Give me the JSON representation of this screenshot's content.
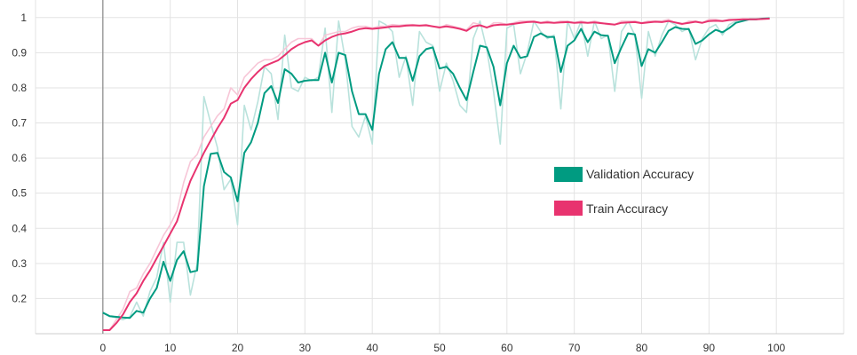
{
  "chart_data": {
    "type": "line",
    "title": "",
    "xlabel": "",
    "ylabel": "",
    "xlim": [
      -10,
      110
    ],
    "ylim": [
      0.1,
      1.05
    ],
    "xticks": [
      "0",
      "10",
      "20",
      "30",
      "40",
      "50",
      "60",
      "70",
      "80",
      "90",
      "100"
    ],
    "yticks": [
      "0.2",
      "0.3",
      "0.4",
      "0.5",
      "0.6",
      "0.7",
      "0.8",
      "0.9",
      "1"
    ],
    "grid": true,
    "legend_position": "center-right",
    "series": [
      {
        "name": "Validation Accuracy",
        "color": "#009b81",
        "raw_color": "#b9e2dc",
        "x": [
          0,
          1,
          2,
          3,
          4,
          5,
          6,
          7,
          8,
          9,
          10,
          11,
          12,
          13,
          14,
          15,
          16,
          17,
          18,
          19,
          20,
          21,
          22,
          23,
          24,
          25,
          26,
          27,
          28,
          29,
          30,
          31,
          32,
          33,
          34,
          35,
          36,
          37,
          38,
          39,
          40,
          41,
          42,
          43,
          44,
          45,
          46,
          47,
          48,
          49,
          50,
          51,
          52,
          53,
          54,
          55,
          56,
          57,
          58,
          59,
          60,
          61,
          62,
          63,
          64,
          65,
          66,
          67,
          68,
          69,
          70,
          71,
          72,
          73,
          74,
          75,
          76,
          77,
          78,
          79,
          80,
          81,
          82,
          83,
          84,
          85,
          86,
          87,
          88,
          89,
          90,
          91,
          92,
          93,
          94,
          95,
          96,
          97,
          98,
          99
        ],
        "values": [
          0.16,
          0.15,
          0.148,
          0.146,
          0.145,
          0.165,
          0.16,
          0.2,
          0.23,
          0.305,
          0.25,
          0.31,
          0.335,
          0.275,
          0.28,
          0.52,
          0.612,
          0.615,
          0.56,
          0.545,
          0.477,
          0.615,
          0.645,
          0.7,
          0.785,
          0.805,
          0.757,
          0.853,
          0.84,
          0.815,
          0.82,
          0.822,
          0.822,
          0.9,
          0.815,
          0.9,
          0.893,
          0.79,
          0.725,
          0.725,
          0.68,
          0.84,
          0.91,
          0.93,
          0.885,
          0.885,
          0.82,
          0.89,
          0.91,
          0.915,
          0.855,
          0.86,
          0.84,
          0.8,
          0.765,
          0.845,
          0.92,
          0.915,
          0.86,
          0.75,
          0.87,
          0.92,
          0.885,
          0.89,
          0.945,
          0.955,
          0.945,
          0.945,
          0.845,
          0.92,
          0.935,
          0.968,
          0.93,
          0.96,
          0.95,
          0.948,
          0.87,
          0.915,
          0.955,
          0.952,
          0.862,
          0.91,
          0.9,
          0.93,
          0.962,
          0.973,
          0.968,
          0.967,
          0.925,
          0.935,
          0.952,
          0.965,
          0.958,
          0.97,
          0.985,
          0.99,
          0.995,
          0.995,
          0.997,
          0.998
        ],
        "raw_values": [
          0.16,
          0.15,
          0.145,
          0.14,
          0.148,
          0.19,
          0.15,
          0.22,
          0.26,
          0.36,
          0.19,
          0.36,
          0.36,
          0.21,
          0.3,
          0.775,
          0.7,
          0.63,
          0.51,
          0.54,
          0.41,
          0.75,
          0.68,
          0.76,
          0.86,
          0.84,
          0.71,
          0.95,
          0.8,
          0.79,
          0.83,
          0.82,
          0.83,
          0.97,
          0.73,
          0.99,
          0.88,
          0.69,
          0.66,
          0.72,
          0.64,
          0.99,
          0.98,
          0.96,
          0.83,
          0.89,
          0.75,
          0.96,
          0.93,
          0.92,
          0.79,
          0.87,
          0.82,
          0.75,
          0.73,
          0.94,
          0.99,
          0.91,
          0.79,
          0.64,
          0.97,
          0.98,
          0.84,
          0.9,
          0.99,
          0.96,
          0.94,
          0.95,
          0.74,
          0.99,
          0.94,
          0.99,
          0.89,
          0.99,
          0.94,
          0.95,
          0.79,
          0.96,
          0.99,
          0.95,
          0.77,
          0.96,
          0.89,
          0.95,
          0.99,
          0.98,
          0.96,
          0.97,
          0.88,
          0.94,
          0.97,
          0.98,
          0.95,
          0.98,
          0.99,
          0.995,
          0.995,
          0.995,
          0.998,
          0.998
        ]
      },
      {
        "name": "Train Accuracy",
        "color": "#e8336f",
        "raw_color": "#f7c6d7",
        "x": [
          0,
          1,
          2,
          3,
          4,
          5,
          6,
          7,
          8,
          9,
          10,
          11,
          12,
          13,
          14,
          15,
          16,
          17,
          18,
          19,
          20,
          21,
          22,
          23,
          24,
          25,
          26,
          27,
          28,
          29,
          30,
          31,
          32,
          33,
          34,
          35,
          36,
          37,
          38,
          39,
          40,
          41,
          42,
          43,
          44,
          45,
          46,
          47,
          48,
          49,
          50,
          51,
          52,
          53,
          54,
          55,
          56,
          57,
          58,
          59,
          60,
          61,
          62,
          63,
          64,
          65,
          66,
          67,
          68,
          69,
          70,
          71,
          72,
          73,
          74,
          75,
          76,
          77,
          78,
          79,
          80,
          81,
          82,
          83,
          84,
          85,
          86,
          87,
          88,
          89,
          90,
          91,
          92,
          93,
          94,
          95,
          96,
          97,
          98,
          99
        ],
        "values": [
          0.11,
          0.11,
          0.13,
          0.155,
          0.19,
          0.215,
          0.25,
          0.28,
          0.315,
          0.35,
          0.385,
          0.42,
          0.48,
          0.535,
          0.575,
          0.615,
          0.65,
          0.685,
          0.715,
          0.755,
          0.765,
          0.8,
          0.825,
          0.845,
          0.862,
          0.87,
          0.878,
          0.893,
          0.91,
          0.922,
          0.93,
          0.935,
          0.92,
          0.935,
          0.945,
          0.952,
          0.955,
          0.96,
          0.967,
          0.97,
          0.968,
          0.97,
          0.972,
          0.975,
          0.975,
          0.977,
          0.978,
          0.977,
          0.978,
          0.975,
          0.972,
          0.975,
          0.972,
          0.968,
          0.962,
          0.975,
          0.978,
          0.972,
          0.978,
          0.98,
          0.98,
          0.982,
          0.985,
          0.987,
          0.988,
          0.985,
          0.986,
          0.985,
          0.986,
          0.987,
          0.985,
          0.986,
          0.985,
          0.986,
          0.984,
          0.982,
          0.98,
          0.985,
          0.986,
          0.987,
          0.984,
          0.986,
          0.988,
          0.987,
          0.99,
          0.986,
          0.982,
          0.985,
          0.988,
          0.985,
          0.99,
          0.991,
          0.99,
          0.993,
          0.994,
          0.995,
          0.995,
          0.995,
          0.996,
          0.997
        ],
        "raw_values": [
          0.11,
          0.11,
          0.14,
          0.17,
          0.22,
          0.23,
          0.27,
          0.3,
          0.34,
          0.38,
          0.41,
          0.45,
          0.53,
          0.59,
          0.61,
          0.66,
          0.69,
          0.72,
          0.74,
          0.8,
          0.78,
          0.83,
          0.85,
          0.87,
          0.88,
          0.88,
          0.89,
          0.91,
          0.93,
          0.94,
          0.94,
          0.94,
          0.92,
          0.95,
          0.955,
          0.96,
          0.96,
          0.97,
          0.975,
          0.975,
          0.97,
          0.975,
          0.975,
          0.98,
          0.978,
          0.98,
          0.98,
          0.978,
          0.98,
          0.975,
          0.97,
          0.98,
          0.975,
          0.97,
          0.965,
          0.985,
          0.98,
          0.97,
          0.985,
          0.985,
          0.98,
          0.985,
          0.99,
          0.99,
          0.99,
          0.985,
          0.99,
          0.985,
          0.99,
          0.99,
          0.985,
          0.99,
          0.985,
          0.99,
          0.985,
          0.98,
          0.98,
          0.99,
          0.99,
          0.99,
          0.985,
          0.99,
          0.99,
          0.99,
          0.995,
          0.985,
          0.98,
          0.99,
          0.99,
          0.985,
          0.995,
          0.995,
          0.99,
          0.995,
          0.995,
          0.995,
          0.995,
          0.995,
          0.997,
          0.998
        ]
      }
    ]
  }
}
